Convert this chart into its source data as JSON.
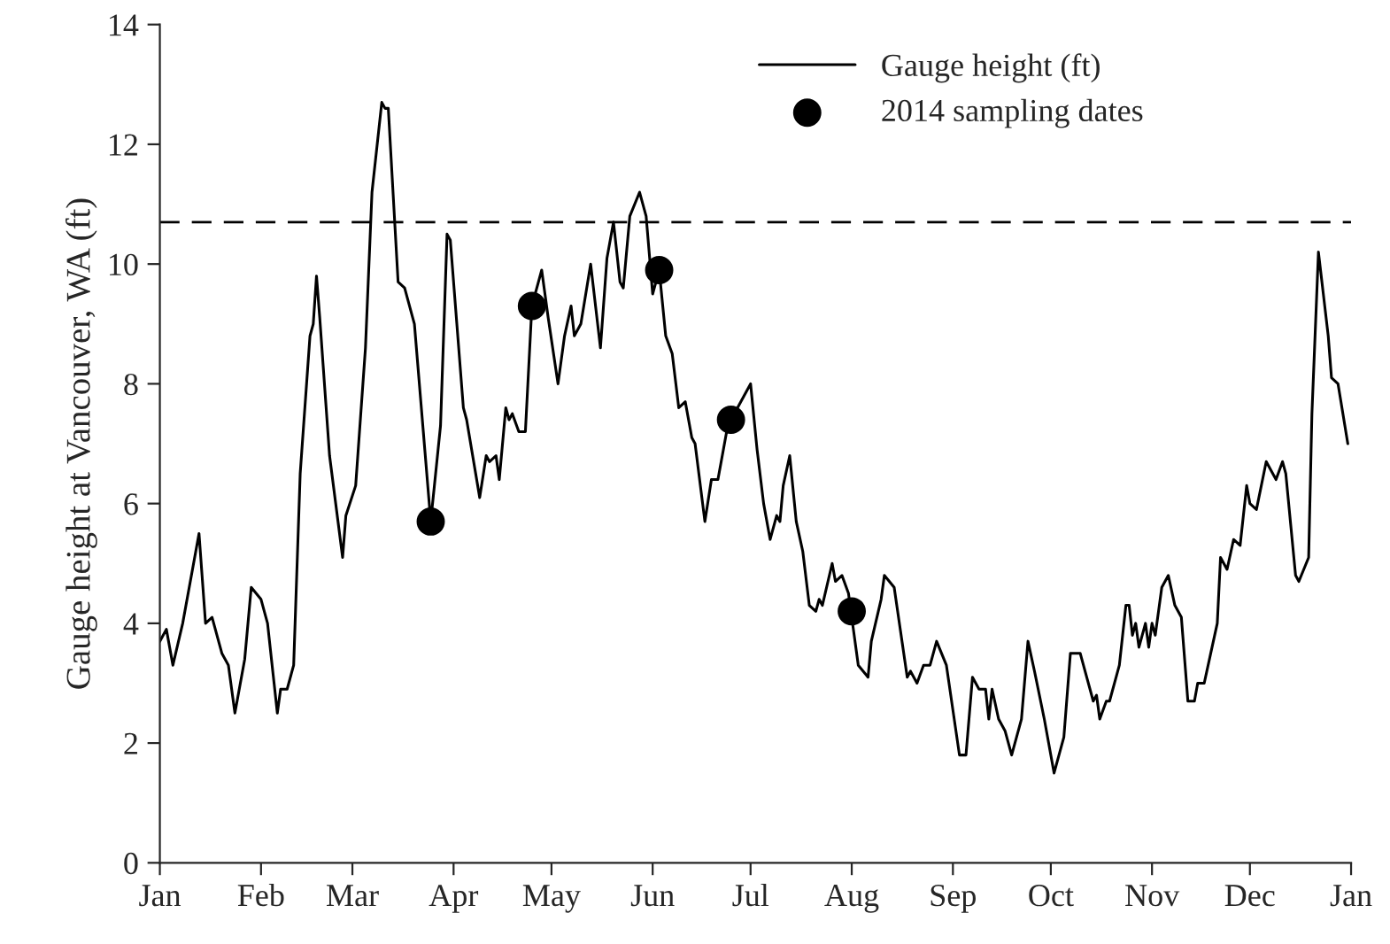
{
  "chart_data": {
    "type": "line",
    "ylabel": "Gauge height at Vancouver, WA (ft)",
    "series": [
      {
        "name": "Gauge height (ft)",
        "color": "#000000",
        "marker": "none",
        "line_style": "solid",
        "x": [
          "2014-01-01",
          "2014-01-03",
          "2014-01-05",
          "2014-01-08",
          "2014-01-13",
          "2014-01-15",
          "2014-01-17",
          "2014-01-20",
          "2014-01-22",
          "2014-01-24",
          "2014-01-27",
          "2014-01-29",
          "2014-02-01",
          "2014-02-03",
          "2014-02-06",
          "2014-02-07",
          "2014-02-09",
          "2014-02-11",
          "2014-02-13",
          "2014-02-16",
          "2014-02-17",
          "2014-02-18",
          "2014-02-19",
          "2014-02-22",
          "2014-02-26",
          "2014-02-27",
          "2014-03-02",
          "2014-03-05",
          "2014-03-07",
          "2014-03-10",
          "2014-03-11",
          "2014-03-12",
          "2014-03-15",
          "2014-03-17",
          "2014-03-20",
          "2014-03-25",
          "2014-03-28",
          "2014-03-30",
          "2014-03-31",
          "2014-04-04",
          "2014-04-05",
          "2014-04-09",
          "2014-04-11",
          "2014-04-12",
          "2014-04-14",
          "2014-04-15",
          "2014-04-17",
          "2014-04-18",
          "2014-04-19",
          "2014-04-21",
          "2014-04-23",
          "2014-04-25",
          "2014-04-28",
          "2014-04-30",
          "2014-05-03",
          "2014-05-05",
          "2014-05-07",
          "2014-05-08",
          "2014-05-10",
          "2014-05-13",
          "2014-05-16",
          "2014-05-18",
          "2014-05-20",
          "2014-05-22",
          "2014-05-23",
          "2014-05-25",
          "2014-05-28",
          "2014-05-30",
          "2014-06-01",
          "2014-06-03",
          "2014-06-05",
          "2014-06-07",
          "2014-06-09",
          "2014-06-11",
          "2014-06-13",
          "2014-06-14",
          "2014-06-17",
          "2014-06-19",
          "2014-06-21",
          "2014-06-24",
          "2014-06-25",
          "2014-06-29",
          "2014-07-01",
          "2014-07-03",
          "2014-07-05",
          "2014-07-07",
          "2014-07-09",
          "2014-07-10",
          "2014-07-11",
          "2014-07-13",
          "2014-07-15",
          "2014-07-17",
          "2014-07-19",
          "2014-07-21",
          "2014-07-22",
          "2014-07-23",
          "2014-07-26",
          "2014-07-27",
          "2014-07-29",
          "2014-07-31",
          "2014-08-01",
          "2014-08-03",
          "2014-08-06",
          "2014-08-07",
          "2014-08-10",
          "2014-08-11",
          "2014-08-14",
          "2014-08-18",
          "2014-08-19",
          "2014-08-21",
          "2014-08-23",
          "2014-08-25",
          "2014-08-27",
          "2014-08-30",
          "2014-09-03",
          "2014-09-05",
          "2014-09-07",
          "2014-09-09",
          "2014-09-11",
          "2014-09-12",
          "2014-09-13",
          "2014-09-15",
          "2014-09-17",
          "2014-09-19",
          "2014-09-22",
          "2014-09-24",
          "2014-09-26",
          "2014-09-29",
          "2014-10-02",
          "2014-10-05",
          "2014-10-07",
          "2014-10-10",
          "2014-10-14",
          "2014-10-15",
          "2014-10-16",
          "2014-10-18",
          "2014-10-19",
          "2014-10-22",
          "2014-10-24",
          "2014-10-25",
          "2014-10-26",
          "2014-10-27",
          "2014-10-28",
          "2014-10-30",
          "2014-10-31",
          "2014-11-01",
          "2014-11-02",
          "2014-11-04",
          "2014-11-06",
          "2014-11-08",
          "2014-11-10",
          "2014-11-12",
          "2014-11-14",
          "2014-11-15",
          "2014-11-17",
          "2014-11-19",
          "2014-11-21",
          "2014-11-22",
          "2014-11-24",
          "2014-11-26",
          "2014-11-28",
          "2014-11-30",
          "2014-12-01",
          "2014-12-03",
          "2014-12-06",
          "2014-12-09",
          "2014-12-11",
          "2014-12-12",
          "2014-12-15",
          "2014-12-16",
          "2014-12-19",
          "2014-12-20",
          "2014-12-22",
          "2014-12-25",
          "2014-12-26",
          "2014-12-28",
          "2014-12-31"
        ],
        "values": [
          3.7,
          3.9,
          3.3,
          4.0,
          5.5,
          4.0,
          4.1,
          3.5,
          3.3,
          2.5,
          3.4,
          4.6,
          4.4,
          4.0,
          2.5,
          2.9,
          2.9,
          3.3,
          6.5,
          8.8,
          9.0,
          9.8,
          9.1,
          6.8,
          5.1,
          5.8,
          6.3,
          8.6,
          11.2,
          12.7,
          12.6,
          12.6,
          9.7,
          9.6,
          9.0,
          5.7,
          7.3,
          10.5,
          10.4,
          7.6,
          7.4,
          6.1,
          6.8,
          6.7,
          6.8,
          6.4,
          7.6,
          7.4,
          7.5,
          7.2,
          7.2,
          9.3,
          9.9,
          9.1,
          8.0,
          8.8,
          9.3,
          8.8,
          9.0,
          10.0,
          8.6,
          10.1,
          10.7,
          9.7,
          9.6,
          10.8,
          11.2,
          10.8,
          9.5,
          9.9,
          8.8,
          8.5,
          7.6,
          7.7,
          7.1,
          7.0,
          5.7,
          6.4,
          6.4,
          7.3,
          7.4,
          7.8,
          8.0,
          6.9,
          6.0,
          5.4,
          5.8,
          5.7,
          6.3,
          6.8,
          5.7,
          5.2,
          4.3,
          4.2,
          4.4,
          4.3,
          5.0,
          4.7,
          4.8,
          4.5,
          4.1,
          3.3,
          3.1,
          3.7,
          4.4,
          4.8,
          4.6,
          3.1,
          3.2,
          3.0,
          3.3,
          3.3,
          3.7,
          3.3,
          1.8,
          1.8,
          3.1,
          2.9,
          2.9,
          2.4,
          2.9,
          2.4,
          2.2,
          1.8,
          2.4,
          3.7,
          3.2,
          2.4,
          1.5,
          2.1,
          3.5,
          3.5,
          2.7,
          2.8,
          2.4,
          2.7,
          2.7,
          3.3,
          4.3,
          4.3,
          3.8,
          4.0,
          3.6,
          4.0,
          3.6,
          4.0,
          3.8,
          4.6,
          4.8,
          4.3,
          4.1,
          2.7,
          2.7,
          3.0,
          3.0,
          3.5,
          4.0,
          5.1,
          4.9,
          5.4,
          5.3,
          6.3,
          6.0,
          5.9,
          6.7,
          6.4,
          6.7,
          6.5,
          4.8,
          4.7,
          5.1,
          7.5,
          10.2,
          8.8,
          8.1,
          8.0,
          7.0
        ]
      },
      {
        "name": "2014 sampling dates",
        "type": "scatter",
        "color": "#000000",
        "marker": "circle",
        "x": [
          "2014-03-25",
          "2014-04-25",
          "2014-06-03",
          "2014-06-25",
          "2014-08-01"
        ],
        "values": [
          5.7,
          9.3,
          9.9,
          7.4,
          4.2
        ]
      }
    ],
    "xlim": [
      "2014-01-01",
      "2015-01-01"
    ],
    "xticks": [
      {
        "value": "2014-01-01",
        "label": "Jan"
      },
      {
        "value": "2014-02-01",
        "label": "Feb"
      },
      {
        "value": "2014-03-01",
        "label": "Mar"
      },
      {
        "value": "2014-04-01",
        "label": "Apr"
      },
      {
        "value": "2014-05-01",
        "label": "May"
      },
      {
        "value": "2014-06-01",
        "label": "Jun"
      },
      {
        "value": "2014-07-01",
        "label": "Jul"
      },
      {
        "value": "2014-08-01",
        "label": "Aug"
      },
      {
        "value": "2014-09-01",
        "label": "Sep"
      },
      {
        "value": "2014-10-01",
        "label": "Oct"
      },
      {
        "value": "2014-11-01",
        "label": "Nov"
      },
      {
        "value": "2014-12-01",
        "label": "Dec"
      },
      {
        "value": "2015-01-01",
        "label": "Jan"
      }
    ],
    "ylim": [
      0,
      14
    ],
    "yticks": [
      0,
      2,
      4,
      6,
      8,
      10,
      12,
      14
    ],
    "ref_lines": [
      {
        "axis": "y",
        "value": 10.7,
        "label": null,
        "color": "#000000",
        "line_style": "dashed"
      }
    ],
    "grid": false,
    "legend": "top right"
  }
}
